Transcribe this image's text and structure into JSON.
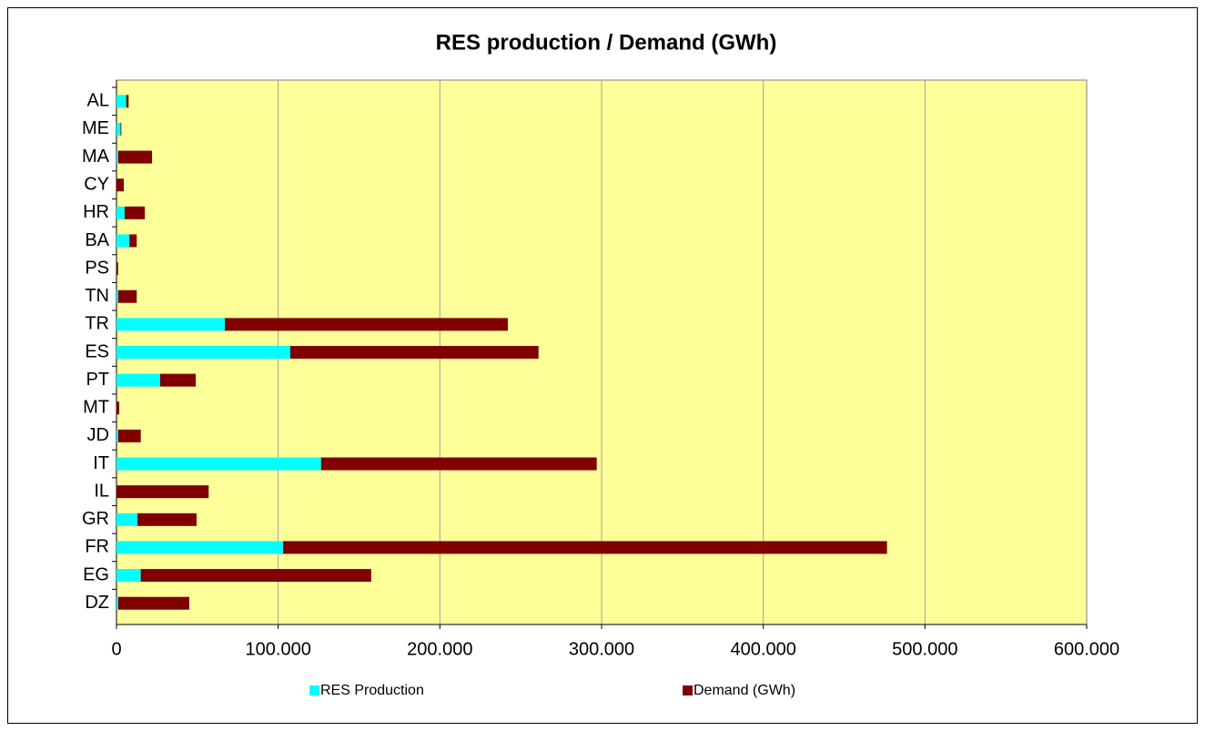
{
  "chart_data": {
    "type": "stacked-barh",
    "title": "RES production / Demand (GWh)",
    "categories": [
      "AL",
      "ME",
      "MA",
      "CY",
      "HR",
      "BA",
      "PS",
      "TN",
      "TR",
      "ES",
      "PT",
      "MT",
      "JD",
      "IT",
      "IL",
      "GR",
      "FR",
      "EG",
      "DZ"
    ],
    "series": [
      {
        "name": "RES Production",
        "color": "#00ffff",
        "values": [
          6000,
          2500,
          1000,
          0,
          5000,
          8000,
          0,
          1000,
          67000,
          107500,
          27000,
          0,
          1000,
          126500,
          0,
          13000,
          103000,
          15000,
          1000
        ]
      },
      {
        "name": "Demand (GWh)",
        "color": "#800000",
        "values": [
          1500,
          500,
          21000,
          4500,
          12500,
          4500,
          1000,
          11500,
          175000,
          153500,
          22000,
          1700,
          14000,
          170500,
          57000,
          36500,
          373500,
          142500,
          44000
        ]
      }
    ],
    "xlim": [
      0,
      600000
    ],
    "xticks": [
      0,
      {
        "value": 100000,
        "label": "100.000"
      },
      {
        "value": 200000,
        "label": "200.000"
      },
      {
        "value": 300000,
        "label": "300.000"
      },
      {
        "value": 400000,
        "label": "400.000"
      },
      {
        "value": 500000,
        "label": "500.000"
      },
      {
        "value": 600000,
        "label": "600.000"
      }
    ],
    "grid": true,
    "legend": "bottom"
  }
}
